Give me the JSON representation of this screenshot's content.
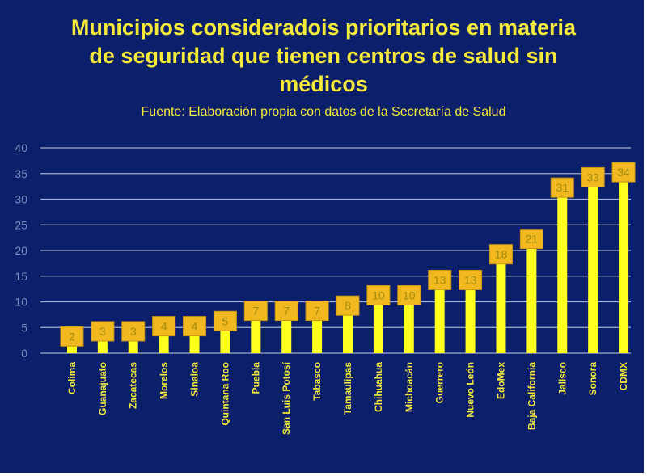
{
  "title_lines": [
    "Municipios consideradois prioritarios en materia",
    "de seguridad que tienen centros de salud sin",
    "médicos"
  ],
  "subtitle": "Fuente: Elaboración propia con datos de la Secretaría de Salud",
  "colors": {
    "background": "#0b1f6b",
    "bar": "#ffff1e",
    "label_box": "#f2b820",
    "text": "#f5e93a",
    "grid": "#d8def0"
  },
  "chart_data": {
    "type": "bar",
    "categories": [
      "Colima",
      "Guanajuato",
      "Zacatecas",
      "Morelos",
      "Sinaloa",
      "Quintana Roo",
      "Puebla",
      "San Luis Potosí",
      "Tabasco",
      "Tamaulipas",
      "Chihuahua",
      "Michoacán",
      "Guerrero",
      "Nuevo León",
      "EdoMex",
      "Baja California",
      "Jalisco",
      "Sonora",
      "CDMX"
    ],
    "values": [
      2,
      3,
      3,
      4,
      4,
      5,
      7,
      7,
      7,
      8,
      10,
      10,
      13,
      13,
      18,
      21,
      31,
      33,
      34
    ],
    "ylim": [
      0,
      40
    ],
    "yticks": [
      0,
      5,
      10,
      15,
      20,
      25,
      30,
      35,
      40
    ],
    "grid": true,
    "data_labels": true
  }
}
